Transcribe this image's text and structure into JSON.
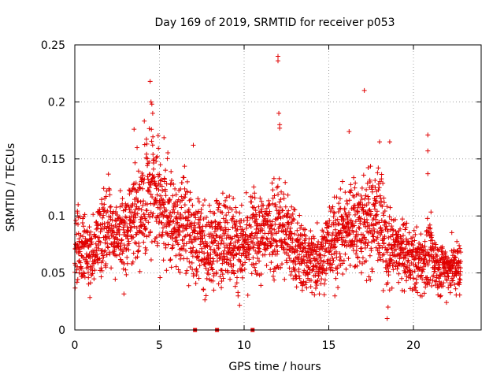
{
  "chart_data": {
    "type": "scatter",
    "title": "Day 169 of 2019, SRMTID for receiver p053",
    "xlabel": "GPS time / hours",
    "ylabel": "SRMTID / TECUs",
    "xlim": [
      0,
      24
    ],
    "ylim": [
      0,
      0.25
    ],
    "xticks": [
      0,
      5,
      10,
      15,
      20
    ],
    "xtick_labels": [
      "0",
      "5",
      "10",
      "15",
      "20"
    ],
    "yticks": [
      0,
      0.05,
      0.1,
      0.15,
      0.2,
      0.25
    ],
    "ytick_labels": [
      "0",
      "0.05",
      "0.1",
      "0.15",
      "0.2",
      "0.25"
    ],
    "grid": true,
    "marker": "+",
    "color": "#e00000",
    "zero_markers": {
      "description": "filled square markers at y = 0",
      "x": [
        7.1,
        8.4,
        10.5
      ]
    },
    "series": [
      {
        "name": "SRMTID",
        "x_start": 0.0,
        "x_end": 22.8,
        "samples_per_hour": 120,
        "profile": {
          "hours": [
            0,
            0.5,
            1,
            1.5,
            2,
            2.5,
            3,
            3.5,
            4,
            4.5,
            5,
            5.5,
            6,
            6.5,
            7,
            7.5,
            8,
            8.5,
            9,
            9.5,
            10,
            10.5,
            11,
            11.5,
            12,
            12.5,
            13,
            13.5,
            14,
            14.5,
            15,
            15.5,
            16,
            16.5,
            17,
            17.5,
            18,
            18.5,
            19,
            19.5,
            20,
            20.5,
            21,
            21.5,
            22,
            22.5,
            22.8
          ],
          "mean": [
            0.07,
            0.075,
            0.065,
            0.085,
            0.09,
            0.08,
            0.085,
            0.1,
            0.115,
            0.12,
            0.11,
            0.1,
            0.09,
            0.095,
            0.085,
            0.075,
            0.07,
            0.08,
            0.085,
            0.075,
            0.07,
            0.085,
            0.08,
            0.09,
            0.095,
            0.085,
            0.07,
            0.065,
            0.06,
            0.065,
            0.075,
            0.08,
            0.09,
            0.095,
            0.09,
            0.095,
            0.1,
            0.07,
            0.07,
            0.065,
            0.06,
            0.06,
            0.065,
            0.055,
            0.055,
            0.055,
            0.055
          ],
          "spread": [
            0.02,
            0.022,
            0.02,
            0.022,
            0.025,
            0.025,
            0.025,
            0.03,
            0.035,
            0.035,
            0.03,
            0.028,
            0.025,
            0.028,
            0.025,
            0.025,
            0.022,
            0.025,
            0.025,
            0.025,
            0.022,
            0.025,
            0.025,
            0.03,
            0.03,
            0.028,
            0.022,
            0.02,
            0.02,
            0.02,
            0.022,
            0.025,
            0.025,
            0.028,
            0.028,
            0.03,
            0.03,
            0.022,
            0.02,
            0.018,
            0.018,
            0.018,
            0.02,
            0.015,
            0.015,
            0.015,
            0.015
          ]
        },
        "notable_points": [
          {
            "x": 4.45,
            "y": 0.218
          },
          {
            "x": 4.5,
            "y": 0.2
          },
          {
            "x": 4.55,
            "y": 0.198
          },
          {
            "x": 4.6,
            "y": 0.19
          },
          {
            "x": 3.5,
            "y": 0.176
          },
          {
            "x": 12.0,
            "y": 0.24
          },
          {
            "x": 12.0,
            "y": 0.236
          },
          {
            "x": 12.05,
            "y": 0.19
          },
          {
            "x": 12.1,
            "y": 0.18
          },
          {
            "x": 12.1,
            "y": 0.177
          },
          {
            "x": 17.1,
            "y": 0.21
          },
          {
            "x": 16.2,
            "y": 0.174
          },
          {
            "x": 18.0,
            "y": 0.165
          },
          {
            "x": 18.6,
            "y": 0.165
          },
          {
            "x": 20.85,
            "y": 0.171
          },
          {
            "x": 20.85,
            "y": 0.157
          },
          {
            "x": 20.85,
            "y": 0.137
          },
          {
            "x": 7.0,
            "y": 0.162
          },
          {
            "x": 18.45,
            "y": 0.01
          },
          {
            "x": 18.5,
            "y": 0.02
          }
        ]
      }
    ]
  }
}
